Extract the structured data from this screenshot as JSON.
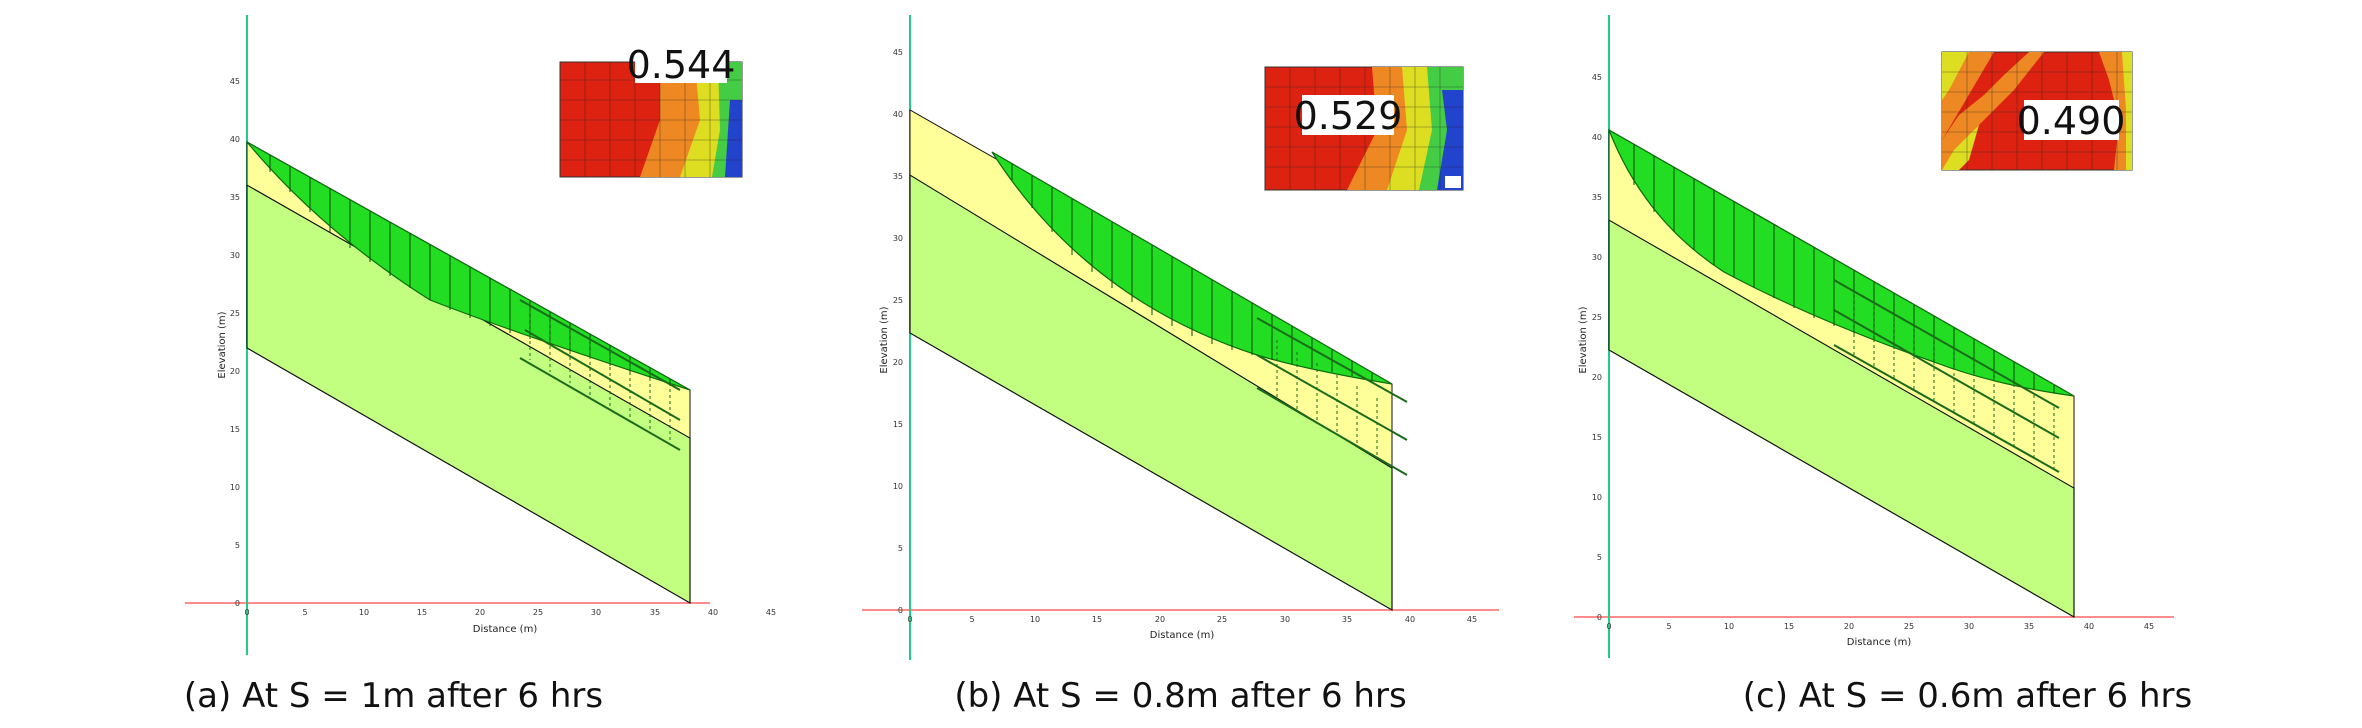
{
  "axis": {
    "x_label": "Distance (m)",
    "y_label": "Elevation (m)",
    "x_ticks": [
      "0",
      "5",
      "10",
      "15",
      "20",
      "25",
      "30",
      "35",
      "40",
      "45"
    ],
    "y_ticks": [
      "0",
      "5",
      "10",
      "15",
      "20",
      "25",
      "30",
      "35",
      "40",
      "45"
    ]
  },
  "colors": {
    "lower_layer": "#c2ff80",
    "upper_layer": "#ffff99",
    "slip_mass": "#22dd22",
    "ground_line": "#ff6666",
    "y_axis_line": "#22cc88"
  },
  "panels": [
    {
      "caption": "(a) At S = 1m after 6 hrs",
      "factor_of_safety": "0.544"
    },
    {
      "caption": "(b) At S = 0.8m after 6 hrs",
      "factor_of_safety": "0.529"
    },
    {
      "caption": "(c) At S = 0.6m after 6 hrs",
      "factor_of_safety": "0.490"
    }
  ]
}
